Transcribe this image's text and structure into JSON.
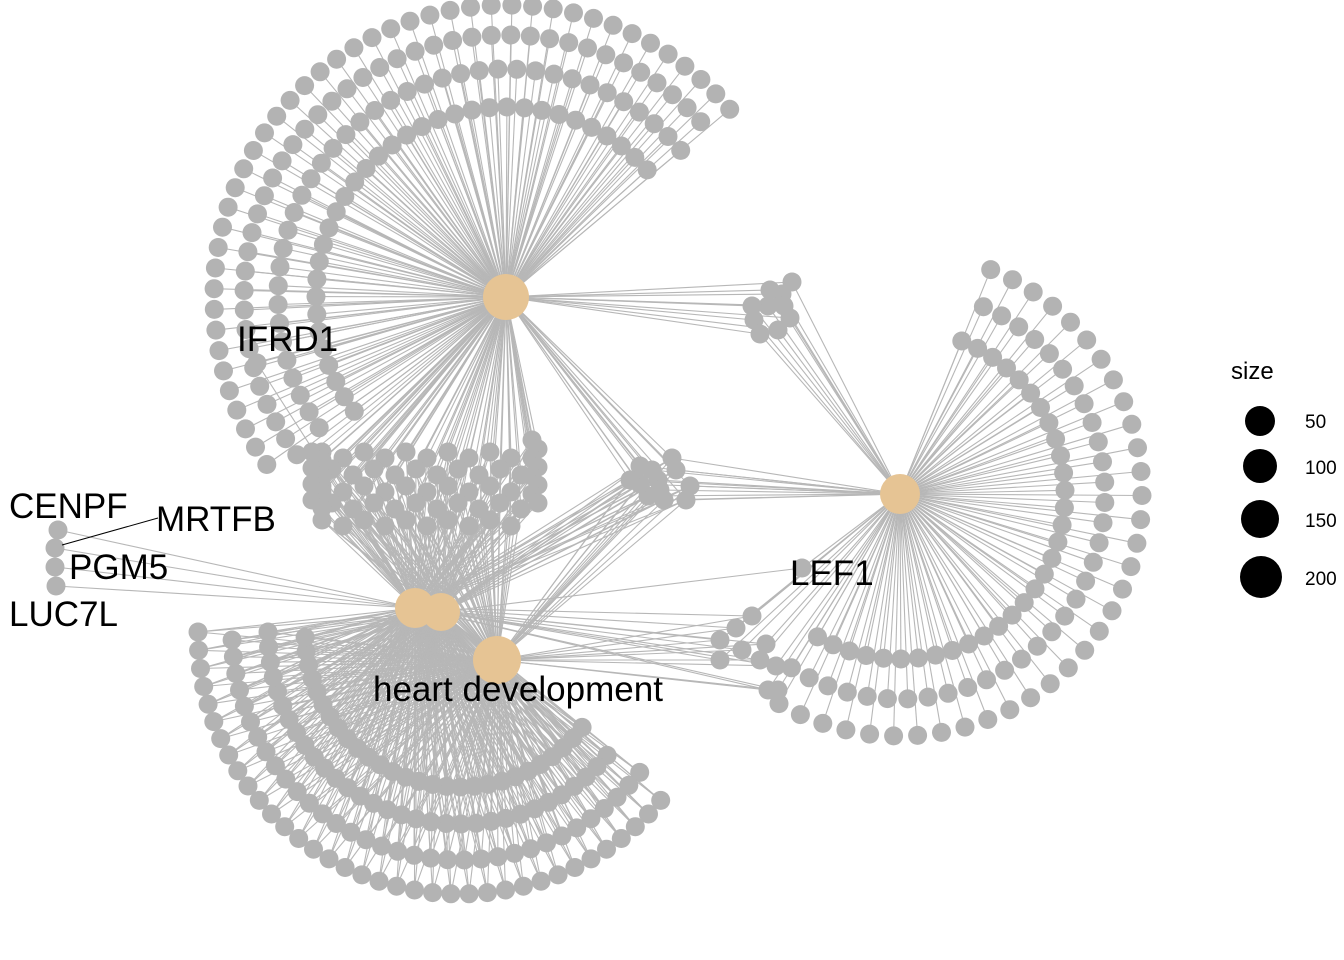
{
  "colors": {
    "gene_node": "#b3b3b3",
    "term_node": "#e6c494",
    "edge": "#b7b7b7",
    "label": "#000000",
    "legend_symbol": "#000000"
  },
  "labels": {
    "ifrd1": "IFRD1",
    "cenpf": "CENPF",
    "mrtfb": "MRTFB",
    "pgm5": "PGM5",
    "luc7l": "LUC7L",
    "lef1": "LEF1",
    "heart_development": "heart development"
  },
  "legend": {
    "title": "size",
    "entries": [
      {
        "label": "50",
        "value": 50
      },
      {
        "label": "100",
        "value": 100
      },
      {
        "label": "150",
        "value": 150
      },
      {
        "label": "200",
        "value": 200
      }
    ]
  }
}
